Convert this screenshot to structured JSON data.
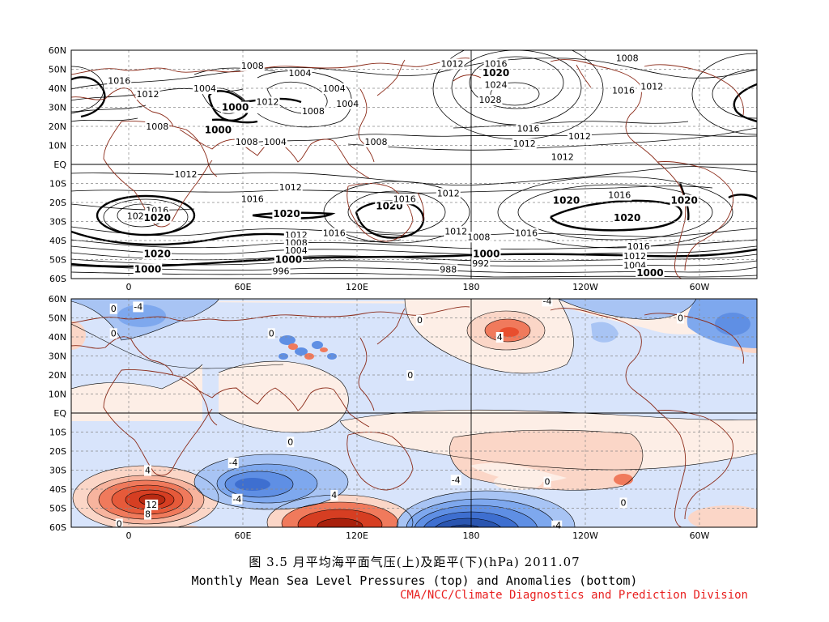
{
  "figure": {
    "caption_cn": "图 3.5   月平均海平面气压(上)及距平(下)(hPa)   2011.07",
    "caption_en": "Monthly Mean Sea Level Pressures (top) and Anomalies (bottom)",
    "credit": "CMA/NCC/Climate Diagnostics and Prediction Division",
    "credit_color": "#e8201f"
  },
  "axes": {
    "lat_ticks": [
      "60N",
      "50N",
      "40N",
      "30N",
      "20N",
      "10N",
      "EQ",
      "10S",
      "20S",
      "30S",
      "40S",
      "50S",
      "60S"
    ],
    "lon_ticks": [
      "0",
      "60E",
      "120E",
      "180",
      "120W",
      "60W"
    ]
  },
  "chart_data": [
    {
      "type": "contour",
      "panel": "top",
      "quantity": "Monthly Mean Sea Level Pressure",
      "units": "hPa",
      "contour_interval": 4,
      "labels": [
        {
          "text": "1016",
          "lon": -5,
          "lat": 44
        },
        {
          "text": "1012",
          "lon": 10,
          "lat": 37
        },
        {
          "text": "1008",
          "lon": 65,
          "lat": 52
        },
        {
          "text": "1004",
          "lon": 90,
          "lat": 48
        },
        {
          "text": "1004",
          "lon": 40,
          "lat": 40
        },
        {
          "text": "1012",
          "lon": 73,
          "lat": 33
        },
        {
          "text": "1004",
          "lon": 108,
          "lat": 40
        },
        {
          "text": "1004",
          "lon": 115,
          "lat": 32
        },
        {
          "text": "1008",
          "lon": 97,
          "lat": 28
        },
        {
          "text": "1000",
          "lon": 56,
          "lat": 30,
          "bold": true
        },
        {
          "text": "1000",
          "lon": 47,
          "lat": 18,
          "bold": true
        },
        {
          "text": "1008",
          "lon": 15,
          "lat": 20
        },
        {
          "text": "1008",
          "lon": 62,
          "lat": 12
        },
        {
          "text": "1004",
          "lon": 77,
          "lat": 12
        },
        {
          "text": "1008",
          "lon": 130,
          "lat": 12
        },
        {
          "text": "1012",
          "lon": 170,
          "lat": 53
        },
        {
          "text": "1016",
          "lon": 193,
          "lat": 53
        },
        {
          "text": "1020",
          "lon": 193,
          "lat": 48,
          "bold": true
        },
        {
          "text": "1024",
          "lon": 193,
          "lat": 42
        },
        {
          "text": "1028",
          "lon": 190,
          "lat": 34
        },
        {
          "text": "1016",
          "lon": 210,
          "lat": 19
        },
        {
          "text": "1012",
          "lon": 208,
          "lat": 11
        },
        {
          "text": "1008",
          "lon": 262,
          "lat": 56
        },
        {
          "text": "1016",
          "lon": 260,
          "lat": 39
        },
        {
          "text": "1012",
          "lon": 275,
          "lat": 41
        },
        {
          "text": "1012",
          "lon": 237,
          "lat": 15
        },
        {
          "text": "1012",
          "lon": 228,
          "lat": 4
        },
        {
          "text": "1012",
          "lon": 30,
          "lat": -5
        },
        {
          "text": "1012",
          "lon": 85,
          "lat": -12
        },
        {
          "text": "1016",
          "lon": 65,
          "lat": -18
        },
        {
          "text": "1016",
          "lon": 15,
          "lat": -24
        },
        {
          "text": "1024",
          "lon": 5,
          "lat": -27
        },
        {
          "text": "1020",
          "lon": 15,
          "lat": -28,
          "bold": true
        },
        {
          "text": "1020",
          "lon": 83,
          "lat": -26,
          "bold": true
        },
        {
          "text": "1020",
          "lon": 137,
          "lat": -22,
          "bold": true
        },
        {
          "text": "1016",
          "lon": 145,
          "lat": -18
        },
        {
          "text": "1012",
          "lon": 168,
          "lat": -15
        },
        {
          "text": "1020",
          "lon": 230,
          "lat": -19,
          "bold": true
        },
        {
          "text": "1020",
          "lon": 262,
          "lat": -28,
          "bold": true
        },
        {
          "text": "1016",
          "lon": 258,
          "lat": -16
        },
        {
          "text": "1020",
          "lon": 292,
          "lat": -19,
          "bold": true
        },
        {
          "text": "1016",
          "lon": 209,
          "lat": -36
        },
        {
          "text": "1016",
          "lon": 108,
          "lat": -36
        },
        {
          "text": "1012",
          "lon": 88,
          "lat": -37
        },
        {
          "text": "1008",
          "lon": 88,
          "lat": -41
        },
        {
          "text": "1004",
          "lon": 88,
          "lat": -45
        },
        {
          "text": "1020",
          "lon": 15,
          "lat": -47,
          "bold": true
        },
        {
          "text": "1000",
          "lon": 84,
          "lat": -50,
          "bold": true
        },
        {
          "text": "996",
          "lon": 80,
          "lat": -56
        },
        {
          "text": "1000",
          "lon": 10,
          "lat": -55,
          "bold": true
        },
        {
          "text": "1012",
          "lon": 172,
          "lat": -35
        },
        {
          "text": "1008",
          "lon": 184,
          "lat": -38
        },
        {
          "text": "1000",
          "lon": 188,
          "lat": -47,
          "bold": true
        },
        {
          "text": "988",
          "lon": 168,
          "lat": -55
        },
        {
          "text": "992",
          "lon": 185,
          "lat": -52
        },
        {
          "text": "1016",
          "lon": 268,
          "lat": -43
        },
        {
          "text": "1012",
          "lon": 266,
          "lat": -48
        },
        {
          "text": "1004",
          "lon": 266,
          "lat": -53
        },
        {
          "text": "1000",
          "lon": 274,
          "lat": -57,
          "bold": true
        }
      ]
    },
    {
      "type": "contour",
      "panel": "bottom",
      "quantity": "Sea Level Pressure Anomalies",
      "units": "hPa",
      "colors": {
        "strong_positive": "#c62b12",
        "positive": "#f07a5c",
        "weak_positive": "#fbd6c7",
        "faint_positive": "#fdeee6",
        "faint_negative": "#d8e4fb",
        "weak_negative": "#a8c4f4",
        "negative": "#5f8fe4",
        "strong_negative": "#1b3f8f"
      },
      "labels": [
        {
          "text": "-4",
          "lon": 5,
          "lat": 56
        },
        {
          "text": "0",
          "lon": -8,
          "lat": 55
        },
        {
          "text": "0",
          "lon": -8,
          "lat": 42
        },
        {
          "text": "0",
          "lon": 75,
          "lat": 42
        },
        {
          "text": "4",
          "lon": 195,
          "lat": 40
        },
        {
          "text": "0",
          "lon": 153,
          "lat": 49
        },
        {
          "text": "0",
          "lon": 148,
          "lat": 20
        },
        {
          "text": "0",
          "lon": 290,
          "lat": 50
        },
        {
          "text": "-4",
          "lon": 220,
          "lat": 59
        },
        {
          "text": "4",
          "lon": 10,
          "lat": -30
        },
        {
          "text": "-4",
          "lon": 55,
          "lat": -26
        },
        {
          "text": "0",
          "lon": 85,
          "lat": -15
        },
        {
          "text": "4",
          "lon": 108,
          "lat": -43
        },
        {
          "text": "-4",
          "lon": 57,
          "lat": -45
        },
        {
          "text": "12",
          "lon": 12,
          "lat": -48
        },
        {
          "text": "8",
          "lon": 10,
          "lat": -53
        },
        {
          "text": "0",
          "lon": -5,
          "lat": -58
        },
        {
          "text": "-4",
          "lon": 172,
          "lat": -35
        },
        {
          "text": "0",
          "lon": 220,
          "lat": -36
        },
        {
          "text": "0",
          "lon": 260,
          "lat": -47
        },
        {
          "text": "-4",
          "lon": 225,
          "lat": -59
        }
      ]
    }
  ]
}
